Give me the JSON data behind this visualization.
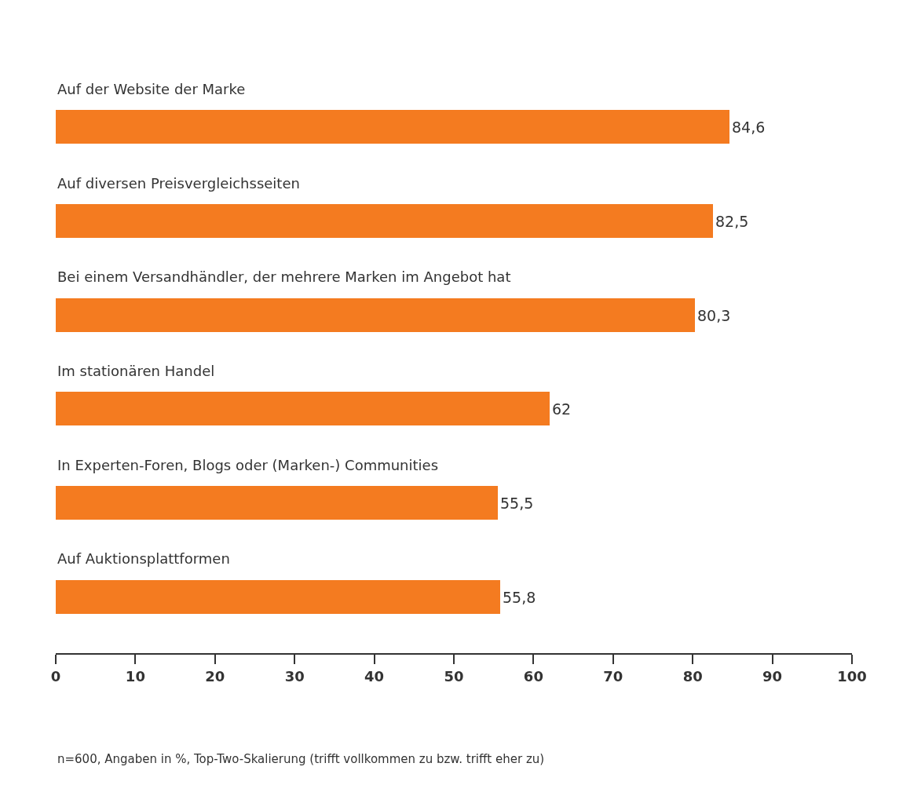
{
  "chart_data": {
    "type": "bar",
    "orientation": "horizontal",
    "categories": [
      "Auf der Website der Marke",
      "Auf diversen Preisvergleichsseiten",
      "Bei einem Versandhändler, der mehrere Marken im Angebot hat",
      "Im stationären Handel",
      "In Experten-Foren, Blogs oder (Marken-) Communities",
      "Auf Auktionsplattformen"
    ],
    "values": [
      84.6,
      82.5,
      80.3,
      62,
      55.5,
      55.8
    ],
    "value_labels": [
      "84,6",
      "82,5",
      "80,3",
      "62",
      "55,5",
      "55,8"
    ],
    "color": "#f47b20",
    "xlim": [
      0,
      100
    ],
    "xticks": [
      0,
      10,
      20,
      30,
      40,
      50,
      60,
      70,
      80,
      90,
      100
    ],
    "annotations": [
      "n=600, Angaben in %, Top-Two-Skalierung (trifft vollkommen zu bzw. trifft eher zu)"
    ]
  }
}
